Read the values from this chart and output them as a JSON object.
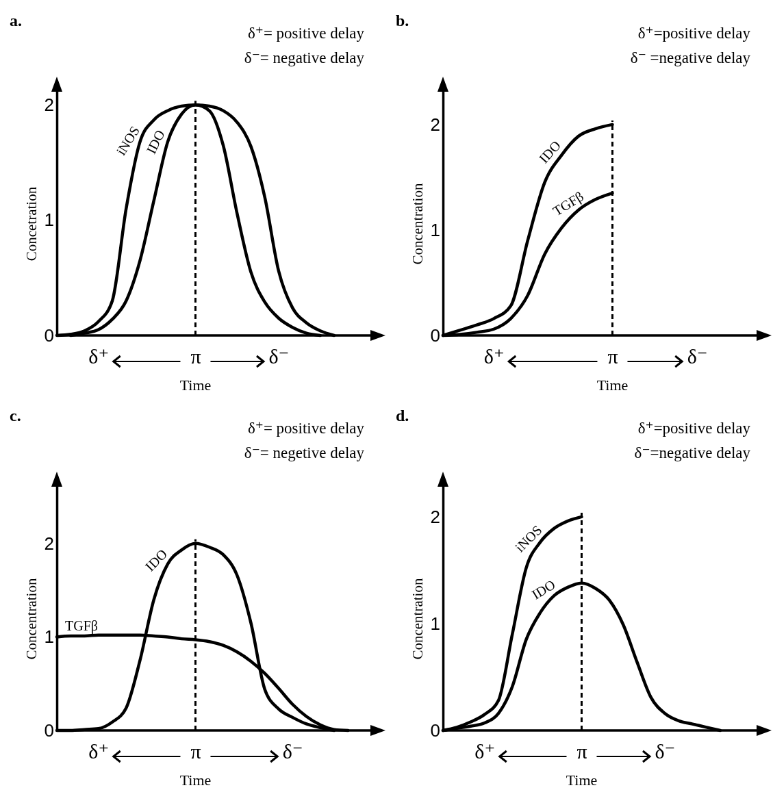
{
  "chart_data": [
    {
      "type": "line",
      "title": "a.",
      "xlabel": "Time",
      "ylabel": "Concetration",
      "annotations": [
        "δ⁺= positive delay",
        "δ⁻= negative delay"
      ],
      "categories": [
        null,
        null,
        null,
        "δ⁺",
        null,
        null,
        null,
        null,
        null,
        null,
        "π",
        null,
        null,
        null,
        null,
        null,
        "δ⁻",
        null,
        null,
        null,
        null,
        null,
        null
      ],
      "ylim": [
        0,
        2.15
      ],
      "yticks": [
        0,
        1,
        2
      ],
      "line_style": "solid",
      "ref_lines": [
        {
          "axis": "x",
          "value": "π",
          "line_style": "dashed",
          "color": "#000000"
        }
      ],
      "series": [
        {
          "name": "iNOS",
          "color": "#000000",
          "values": [
            0,
            0.01,
            0.04,
            0.12,
            0.3,
            1.1,
            1.68,
            1.87,
            1.95,
            1.99,
            2,
            1.99,
            1.95,
            1.85,
            1.64,
            1.2,
            0.56,
            0.24,
            0.11,
            0.04,
            0,
            null,
            null
          ]
        },
        {
          "name": "IDO",
          "color": "#000000",
          "values": [
            null,
            0,
            0.02,
            0.05,
            0.14,
            0.3,
            0.65,
            1.17,
            1.68,
            1.92,
            2,
            1.95,
            1.65,
            1.06,
            0.55,
            0.29,
            0.15,
            0.07,
            0.02,
            0,
            null,
            null,
            null
          ]
        }
      ]
    },
    {
      "type": "line",
      "title": "b.",
      "xlabel": "Time",
      "ylabel": "Concentration",
      "annotations": [
        "δ⁺=positive delay",
        "δ⁻ =negative delay"
      ],
      "categories": [
        null,
        null,
        null,
        "δ⁺",
        null,
        null,
        null,
        null,
        null,
        null,
        "π",
        null,
        null,
        null,
        null,
        "δ⁻",
        null,
        null,
        null
      ],
      "ylim": [
        0,
        2.35
      ],
      "yticks": [
        0,
        1,
        2
      ],
      "line_style": "solid",
      "ref_lines": [
        {
          "axis": "x",
          "value": "π",
          "line_style": "dashed",
          "color": "#000000"
        }
      ],
      "series": [
        {
          "name": "IDO",
          "color": "#000000",
          "values": [
            0,
            0.05,
            0.1,
            0.16,
            0.28,
            0.9,
            1.45,
            1.71,
            1.89,
            1.96,
            2.0,
            null,
            null,
            null,
            null,
            null,
            null,
            null,
            null
          ]
        },
        {
          "name": "TGFβ",
          "color": "#000000",
          "values": [
            0,
            0.01,
            0.03,
            0.06,
            0.16,
            0.38,
            0.77,
            1.02,
            1.19,
            1.29,
            1.35,
            null,
            null,
            null,
            null,
            null,
            null,
            null,
            null
          ]
        }
      ]
    },
    {
      "type": "line",
      "title": "c.",
      "xlabel": "Time",
      "ylabel": "Concentration",
      "annotations": [
        "δ⁺= positive delay",
        "δ⁻= negetive delay"
      ],
      "categories": [
        null,
        null,
        null,
        "δ⁺",
        null,
        null,
        null,
        null,
        null,
        null,
        "π",
        null,
        null,
        null,
        null,
        null,
        null,
        "δ⁻",
        null,
        null,
        null,
        null,
        null
      ],
      "ylim": [
        0,
        2.65
      ],
      "yticks": [
        0,
        1,
        2
      ],
      "line_style": "solid",
      "ref_lines": [
        {
          "axis": "x",
          "value": "π",
          "line_style": "dashed",
          "color": "#000000"
        }
      ],
      "series": [
        {
          "name": "IDO",
          "color": "#000000",
          "values": [
            0,
            0,
            0.01,
            0.02,
            0.09,
            0.24,
            0.75,
            1.4,
            1.78,
            1.93,
            2,
            1.96,
            1.88,
            1.66,
            1.15,
            0.44,
            0.23,
            0.14,
            0.07,
            0.03,
            0,
            null,
            null
          ]
        },
        {
          "name": "TGFβ",
          "color": "#000000",
          "values": [
            1,
            1.01,
            1.01,
            1.02,
            1.02,
            1.02,
            1.02,
            1.01,
            1,
            0.98,
            0.97,
            0.95,
            0.91,
            0.84,
            0.74,
            0.61,
            0.45,
            0.28,
            0.15,
            0.06,
            0.01,
            0,
            null
          ]
        }
      ]
    },
    {
      "type": "line",
      "title": "d.",
      "xlabel": "Time",
      "ylabel": "Concentration",
      "annotations": [
        "δ⁺=positive delay",
        "δ⁻=negative delay"
      ],
      "categories": [
        null,
        null,
        null,
        "δ⁺",
        null,
        null,
        null,
        null,
        null,
        null,
        "π",
        null,
        null,
        null,
        null,
        null,
        "δ⁻",
        null,
        null,
        null,
        null,
        null,
        null
      ],
      "ylim": [
        0,
        2.32
      ],
      "yticks": [
        0,
        1,
        2
      ],
      "line_style": "solid",
      "ref_lines": [
        {
          "axis": "x",
          "value": "π",
          "line_style": "dashed",
          "color": "#000000"
        }
      ],
      "series": [
        {
          "name": "iNOS",
          "color": "#000000",
          "values": [
            0,
            0.03,
            0.08,
            0.15,
            0.28,
            0.9,
            1.52,
            1.76,
            1.89,
            1.96,
            2.0,
            null,
            null,
            null,
            null,
            null,
            null,
            null,
            null,
            null,
            null,
            null,
            null
          ]
        },
        {
          "name": "IDO",
          "color": "#000000",
          "values": [
            0,
            0.02,
            0.04,
            0.07,
            0.16,
            0.41,
            0.85,
            1.1,
            1.26,
            1.34,
            1.38,
            1.33,
            1.22,
            0.99,
            0.64,
            0.31,
            0.16,
            0.09,
            0.06,
            0.03,
            0,
            null,
            null
          ]
        }
      ]
    }
  ]
}
